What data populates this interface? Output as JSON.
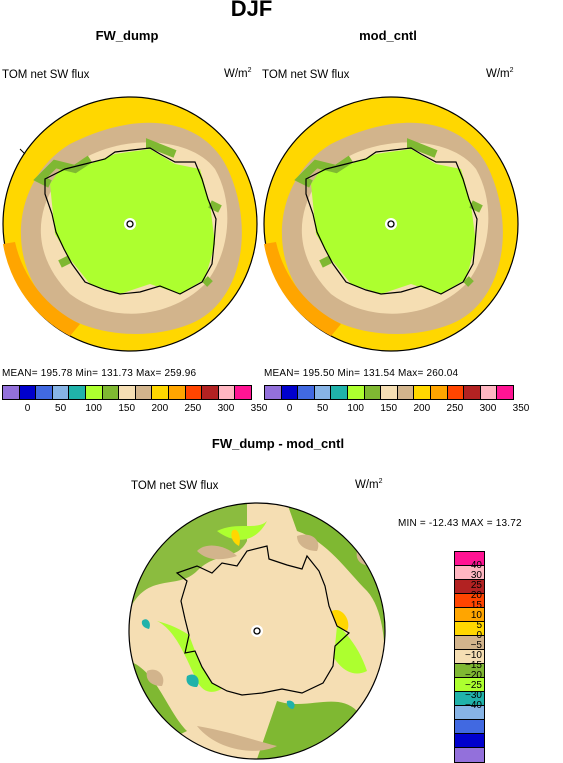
{
  "page": {
    "title": "DJF"
  },
  "panels": [
    {
      "name": "FW_dump",
      "field": "TOM net SW flux",
      "units": "W/m",
      "units_sup": "2",
      "stats": "MEAN= 195.78   Min= 131.73   Max= 259.96"
    },
    {
      "name": "mod_cntl",
      "field": "TOM net SW flux",
      "units": "W/m",
      "units_sup": "2",
      "stats": "MEAN= 195.50   Min= 131.54   Max= 260.04"
    }
  ],
  "diff_panel": {
    "name": "FW_dump - mod_cntl",
    "field": "TOM net SW flux",
    "units": "W/m",
    "units_sup": "2",
    "stats": "MIN = -12.43  MAX =  13.72"
  },
  "colorbar_top": {
    "colors": [
      "#9370db",
      "#0000cd",
      "#4169e1",
      "#87b4e6",
      "#20b2aa",
      "#adff2f",
      "#7fb832",
      "#f5deb3",
      "#d2b48c",
      "#ffd700",
      "#ffa500",
      "#ff4500",
      "#b22222",
      "#ffb6c1",
      "#ff1493"
    ],
    "tick_labels": [
      "0",
      "50",
      "100",
      "150",
      "200",
      "250",
      "300",
      "350"
    ]
  },
  "colorbar_diff": {
    "colors": [
      "#ff1493",
      "#ffb6c1",
      "#b22222",
      "#ff4500",
      "#ffa500",
      "#ffd700",
      "#d2b48c",
      "#f5deb3",
      "#7fb832",
      "#adff2f",
      "#20b2aa",
      "#87b4e6",
      "#4169e1",
      "#0000cd",
      "#9370db"
    ],
    "tick_labels": [
      "40",
      "30",
      "25",
      "20",
      "15",
      "10",
      "5",
      "0",
      "−5",
      "−10",
      "−15",
      "−20",
      "−25",
      "−30",
      "−40"
    ]
  },
  "chart_data": [
    {
      "type": "heatmap",
      "title": "FW_dump",
      "subtitle": "TOM net SW flux",
      "units": "W/m2",
      "projection": "south polar stereographic",
      "season": "DJF",
      "levels": [
        0,
        50,
        100,
        150,
        200,
        250,
        300,
        350
      ],
      "mean": 195.78,
      "min": 131.73,
      "max": 259.96
    },
    {
      "type": "heatmap",
      "title": "mod_cntl",
      "subtitle": "TOM net SW flux",
      "units": "W/m2",
      "projection": "south polar stereographic",
      "season": "DJF",
      "levels": [
        0,
        50,
        100,
        150,
        200,
        250,
        300,
        350
      ],
      "mean": 195.5,
      "min": 131.54,
      "max": 260.04
    },
    {
      "type": "heatmap",
      "title": "FW_dump - mod_cntl",
      "subtitle": "TOM net SW flux",
      "units": "W/m2",
      "projection": "south polar stereographic",
      "season": "DJF",
      "levels": [
        -40,
        -30,
        -25,
        -20,
        -15,
        -10,
        -5,
        0,
        5,
        10,
        15,
        20,
        25,
        30,
        40
      ],
      "min": -12.43,
      "max": 13.72
    }
  ]
}
